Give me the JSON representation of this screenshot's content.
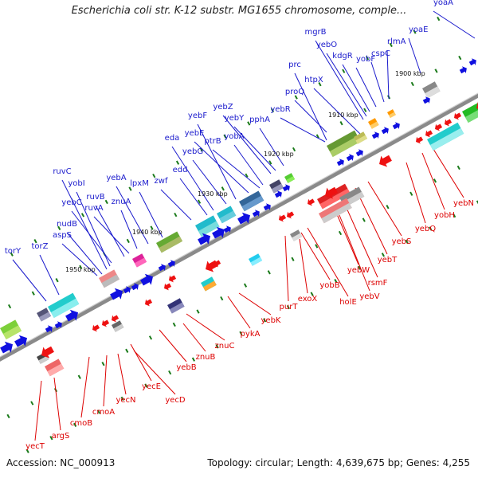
{
  "title": "Escherichia coli str. K-12 substr. MG1655 chromosome, comple...",
  "footer": {
    "accession": "Accession: NC_000913",
    "topology": "Topology: circular; Length: 4,639,675 bp; Genes: 4,255"
  },
  "colors": {
    "forward_label": "#1a1acc",
    "reverse_label": "#dd0000",
    "forward_arrow": "#1010e0",
    "reverse_arrow": "#ee1111",
    "backbone": "#808080",
    "tick": "#1a7a1a"
  },
  "kbp_labels": [
    "1900 kbp",
    "1910 kbp",
    "1920 kbp",
    "1930 kbp",
    "1940 kbp",
    "1950 kbp"
  ],
  "forward_genes": [
    "yoaA",
    "yoaE",
    "rlmA",
    "cspC",
    "yobF",
    "kdgR",
    "yebO",
    "mgrB",
    "prc",
    "htpX",
    "proQ",
    "yebR",
    "pphA",
    "yebY",
    "yebZ",
    "yobA",
    "ptrB",
    "yebE",
    "yebF",
    "yebG",
    "eda",
    "edd",
    "zwf",
    "lpxM",
    "yebA",
    "znuA",
    "ruvA",
    "ruvB",
    "yebC",
    "yobI",
    "ruvC",
    "nudB",
    "aspS",
    "torZ",
    "torY"
  ],
  "reverse_genes": [
    "yebN",
    "yobH",
    "yebQ",
    "yebS",
    "yebT",
    "rsmF",
    "yebW",
    "yebV",
    "yobB",
    "holE",
    "exoX",
    "purT",
    "yebK",
    "pykA",
    "znuC",
    "znuB",
    "yebB",
    "yecE",
    "yecD",
    "yecN",
    "cmoA",
    "cmoB",
    "argS",
    "yecT"
  ]
}
